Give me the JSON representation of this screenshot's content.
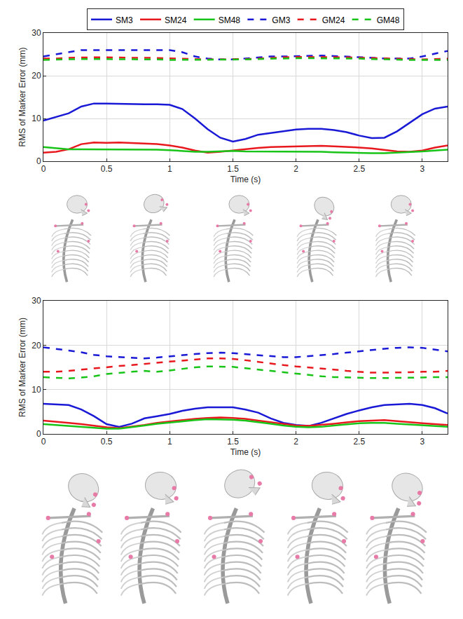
{
  "chart_data": [
    {
      "type": "line",
      "xlabel": "Time (s)",
      "ylabel": "RMS of Marker Error (mm)",
      "x": [
        0,
        0.1,
        0.2,
        0.3,
        0.4,
        0.5,
        0.6,
        0.7,
        0.8,
        0.9,
        1.0,
        1.1,
        1.2,
        1.3,
        1.4,
        1.5,
        1.6,
        1.7,
        1.8,
        1.9,
        2.0,
        2.1,
        2.2,
        2.3,
        2.4,
        2.5,
        2.6,
        2.7,
        2.8,
        2.9,
        3.0,
        3.1,
        3.2
      ],
      "xlim": [
        0,
        3.2
      ],
      "xticks": [
        0,
        0.5,
        1,
        1.5,
        2,
        2.5,
        3
      ],
      "ylim": [
        0,
        30
      ],
      "yticks": [
        0,
        10,
        20,
        30
      ],
      "grid": true,
      "legend": "top",
      "series": [
        {
          "name": "SM3",
          "color": "#1a1ad6",
          "line_style": "solid",
          "values": [
            9.5,
            10.3,
            11.2,
            12.8,
            13.5,
            13.5,
            13.4,
            13.3,
            13.3,
            13.3,
            13.2,
            12.2,
            10.0,
            7.5,
            5.5,
            4.6,
            5.2,
            6.2,
            6.6,
            7.0,
            7.4,
            7.6,
            7.6,
            7.3,
            6.8,
            6.0,
            5.4,
            5.5,
            7.0,
            9.0,
            11.0,
            12.3,
            12.8
          ]
        },
        {
          "name": "SM24",
          "color": "#e8191e",
          "line_style": "solid",
          "values": [
            2.0,
            2.2,
            2.8,
            4.0,
            4.4,
            4.3,
            4.4,
            4.3,
            4.2,
            4.0,
            3.7,
            3.2,
            2.5,
            2.0,
            2.2,
            2.5,
            2.9,
            3.1,
            3.3,
            3.4,
            3.5,
            3.6,
            3.6,
            3.5,
            3.4,
            3.2,
            3.0,
            2.6,
            2.3,
            2.2,
            2.5,
            3.2,
            3.7
          ]
        },
        {
          "name": "SM48",
          "color": "#19c419",
          "line_style": "solid",
          "values": [
            3.3,
            3.0,
            2.8,
            2.8,
            2.8,
            2.8,
            2.8,
            2.8,
            2.7,
            2.7,
            2.6,
            2.4,
            2.2,
            2.2,
            2.3,
            2.4,
            2.3,
            2.3,
            2.3,
            2.2,
            2.2,
            2.2,
            2.2,
            2.1,
            2.0,
            2.0,
            1.9,
            1.9,
            2.0,
            2.1,
            2.3,
            2.5,
            2.7
          ]
        },
        {
          "name": "GM3",
          "color": "#1a1ad6",
          "line_style": "dash",
          "values": [
            24.5,
            25.0,
            25.5,
            26.0,
            26.0,
            26.0,
            26.0,
            26.0,
            26.0,
            26.0,
            26.0,
            25.5,
            24.5,
            24.0,
            23.8,
            23.8,
            24.0,
            24.2,
            24.5,
            24.5,
            24.6,
            24.7,
            24.7,
            24.6,
            24.5,
            24.3,
            24.2,
            24.0,
            24.0,
            24.0,
            24.5,
            25.2,
            25.8
          ]
        },
        {
          "name": "GM24",
          "color": "#e8191e",
          "line_style": "dash",
          "values": [
            24.0,
            24.0,
            24.2,
            24.3,
            24.3,
            24.3,
            24.2,
            24.2,
            24.2,
            24.1,
            24.0,
            24.0,
            23.9,
            23.8,
            23.8,
            23.8,
            23.9,
            24.0,
            24.2,
            24.3,
            24.4,
            24.4,
            24.4,
            24.4,
            24.3,
            24.2,
            24.1,
            24.0,
            23.9,
            23.8,
            23.8,
            23.9,
            24.0
          ]
        },
        {
          "name": "GM48",
          "color": "#19c419",
          "line_style": "dash",
          "values": [
            23.7,
            23.8,
            23.9,
            23.9,
            23.9,
            23.9,
            23.8,
            23.8,
            23.8,
            23.8,
            23.7,
            23.7,
            23.7,
            23.7,
            23.7,
            23.7,
            23.8,
            23.9,
            24.0,
            24.0,
            24.1,
            24.1,
            24.1,
            24.1,
            24.0,
            24.0,
            23.9,
            23.8,
            23.8,
            23.7,
            23.7,
            23.7,
            23.7
          ]
        }
      ]
    },
    {
      "type": "line",
      "xlabel": "Time (s)",
      "ylabel": "RMS of Marker Error (mm)",
      "x": [
        0,
        0.1,
        0.2,
        0.3,
        0.4,
        0.5,
        0.6,
        0.7,
        0.8,
        0.9,
        1.0,
        1.1,
        1.2,
        1.3,
        1.4,
        1.5,
        1.6,
        1.7,
        1.8,
        1.9,
        2.0,
        2.1,
        2.2,
        2.3,
        2.4,
        2.5,
        2.6,
        2.7,
        2.8,
        2.9,
        3.0,
        3.1,
        3.2
      ],
      "xlim": [
        0,
        3.2
      ],
      "xticks": [
        0,
        0.5,
        1,
        1.5,
        2,
        2.5,
        3
      ],
      "ylim": [
        0,
        30
      ],
      "yticks": [
        0,
        10,
        20,
        30
      ],
      "grid": true,
      "series": [
        {
          "name": "SM3",
          "color": "#1a1ad6",
          "line_style": "solid",
          "values": [
            6.8,
            6.6,
            6.5,
            5.5,
            4.0,
            2.2,
            1.6,
            2.3,
            3.5,
            4.0,
            4.5,
            5.2,
            5.7,
            6.0,
            6.0,
            6.0,
            5.5,
            4.8,
            3.5,
            2.5,
            2.0,
            1.8,
            2.5,
            3.5,
            4.5,
            5.3,
            6.0,
            6.5,
            6.7,
            6.8,
            6.5,
            5.8,
            4.6
          ]
        },
        {
          "name": "SM24",
          "color": "#e8191e",
          "line_style": "solid",
          "values": [
            3.0,
            2.8,
            2.5,
            2.2,
            1.8,
            1.5,
            1.3,
            1.6,
            2.0,
            2.5,
            2.8,
            3.2,
            3.4,
            3.6,
            3.7,
            3.6,
            3.4,
            3.0,
            2.6,
            2.2,
            1.9,
            1.8,
            2.0,
            2.3,
            2.6,
            2.9,
            3.0,
            3.1,
            2.9,
            2.6,
            2.4,
            2.2,
            2.0
          ]
        },
        {
          "name": "SM48",
          "color": "#19c419",
          "line_style": "solid",
          "values": [
            2.2,
            2.0,
            1.8,
            1.6,
            1.4,
            1.2,
            1.2,
            1.5,
            1.9,
            2.3,
            2.6,
            2.9,
            3.1,
            3.3,
            3.3,
            3.2,
            3.0,
            2.7,
            2.3,
            1.9,
            1.6,
            1.5,
            1.6,
            1.9,
            2.2,
            2.4,
            2.5,
            2.5,
            2.3,
            2.1,
            1.9,
            1.7,
            1.6
          ]
        },
        {
          "name": "GM3",
          "color": "#1a1ad6",
          "line_style": "dash",
          "values": [
            19.5,
            19.2,
            18.8,
            18.4,
            17.8,
            17.5,
            17.3,
            17.2,
            17.0,
            17.2,
            17.5,
            17.8,
            18.0,
            18.2,
            18.3,
            18.2,
            18.0,
            17.8,
            17.5,
            17.3,
            17.3,
            17.5,
            17.8,
            18.0,
            18.3,
            18.6,
            19.0,
            19.2,
            19.4,
            19.5,
            19.4,
            19.0,
            18.6
          ]
        },
        {
          "name": "GM24",
          "color": "#e8191e",
          "line_style": "dash",
          "values": [
            14.0,
            14.0,
            14.2,
            14.5,
            14.8,
            15.0,
            15.3,
            15.5,
            15.8,
            16.0,
            16.3,
            16.5,
            16.8,
            17.0,
            17.0,
            16.9,
            16.6,
            16.2,
            15.8,
            15.5,
            15.2,
            15.0,
            14.8,
            14.5,
            14.2,
            14.0,
            13.8,
            13.8,
            13.8,
            13.9,
            14.0,
            14.0,
            14.2
          ]
        },
        {
          "name": "GM48",
          "color": "#19c419",
          "line_style": "dash",
          "values": [
            12.8,
            12.6,
            12.5,
            12.7,
            13.0,
            13.5,
            13.8,
            14.0,
            14.2,
            14.0,
            14.3,
            14.7,
            15.0,
            15.2,
            15.2,
            15.1,
            14.8,
            14.5,
            14.2,
            13.8,
            13.5,
            13.2,
            13.0,
            12.8,
            12.7,
            12.6,
            12.6,
            12.6,
            12.6,
            12.6,
            12.7,
            12.8,
            12.8
          ]
        }
      ]
    }
  ]
}
